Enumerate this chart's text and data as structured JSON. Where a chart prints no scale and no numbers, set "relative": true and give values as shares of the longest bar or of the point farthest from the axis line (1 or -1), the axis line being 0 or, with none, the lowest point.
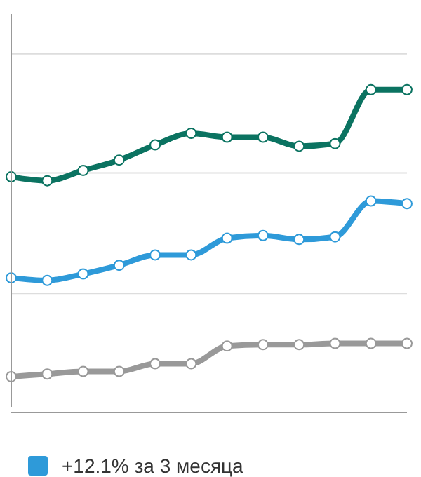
{
  "chart_data": {
    "type": "line",
    "relative": true,
    "categories": [
      null,
      null,
      null,
      null,
      null,
      null,
      null,
      null,
      null,
      null,
      null,
      null
    ],
    "series": [
      {
        "color": "#0b7361",
        "values": [
          0.73,
          0.718,
          0.75,
          0.782,
          0.829,
          0.865,
          0.853,
          0.853,
          0.825,
          0.833,
          1,
          1
        ]
      },
      {
        "name": "+12.1% за 3 месяца",
        "color": "#2e9ad9",
        "values": [
          0.417,
          0.409,
          0.429,
          0.456,
          0.488,
          0.488,
          0.54,
          0.548,
          0.536,
          0.544,
          0.655,
          0.647
        ]
      },
      {
        "color": "#999999",
        "values": [
          0.111,
          0.119,
          0.127,
          0.127,
          0.151,
          0.151,
          0.206,
          0.21,
          0.21,
          0.214,
          0.214,
          0.214
        ]
      }
    ],
    "ref_lines": [
      {
        "axis": "y",
        "value": 1.111,
        "color": "#dddddd"
      },
      {
        "axis": "y",
        "value": 0.742,
        "color": "#dddddd"
      },
      {
        "axis": "y",
        "value": 0.369,
        "color": "#dddddd"
      }
    ],
    "legend": "bottom",
    "marker": "circle",
    "line_style": "solid",
    "tick_labels": false
  }
}
